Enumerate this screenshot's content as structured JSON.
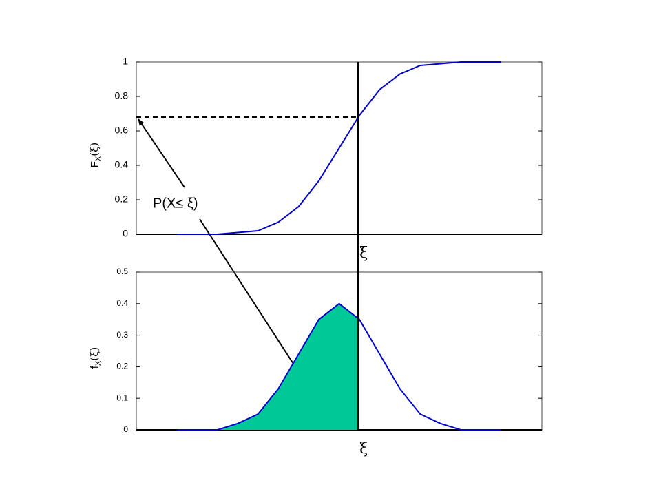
{
  "chart_data": [
    {
      "type": "line",
      "ylabel": {
        "main": "F",
        "sub": "X",
        "arg": "(ξ)"
      },
      "xlabel": "ξ",
      "annotation": "P(X≤ ξ)",
      "x": [
        -4,
        -3.5,
        -3,
        -2.5,
        -2,
        -1.5,
        -1,
        -0.5,
        0,
        0.5,
        1,
        1.5,
        2,
        2.5,
        3,
        3.5,
        4
      ],
      "values": [
        0,
        0,
        0,
        0.01,
        0.02,
        0.07,
        0.16,
        0.31,
        0.5,
        0.69,
        0.84,
        0.93,
        0.98,
        0.99,
        1,
        1,
        1
      ],
      "color": "#0000cc",
      "xlim": [
        -5,
        5
      ],
      "ylim": [
        0,
        1
      ],
      "yticks": [
        0,
        0.2,
        0.4,
        0.6,
        0.8,
        1
      ],
      "marker_x": 0.47,
      "marker_y": 0.68
    },
    {
      "type": "line",
      "ylabel": {
        "main": "f",
        "sub": "X",
        "arg": "(ξ)"
      },
      "xlabel": "ξ",
      "x": [
        -4,
        -3.5,
        -3,
        -2.5,
        -2,
        -1.5,
        -1,
        -0.5,
        0,
        0.5,
        1,
        1.5,
        2,
        2.5,
        3,
        3.5,
        4
      ],
      "values": [
        0,
        0,
        0,
        0.02,
        0.05,
        0.13,
        0.24,
        0.35,
        0.4,
        0.35,
        0.24,
        0.13,
        0.05,
        0.02,
        0,
        0,
        0
      ],
      "color": "#0000cc",
      "shade_to": 0.47,
      "shade_color": "#00c896",
      "xlim": [
        -5,
        5
      ],
      "ylim": [
        0,
        0.5
      ],
      "yticks": [
        0,
        0.1,
        0.2,
        0.3,
        0.4,
        0.5
      ],
      "marker_x": 0.47
    }
  ]
}
